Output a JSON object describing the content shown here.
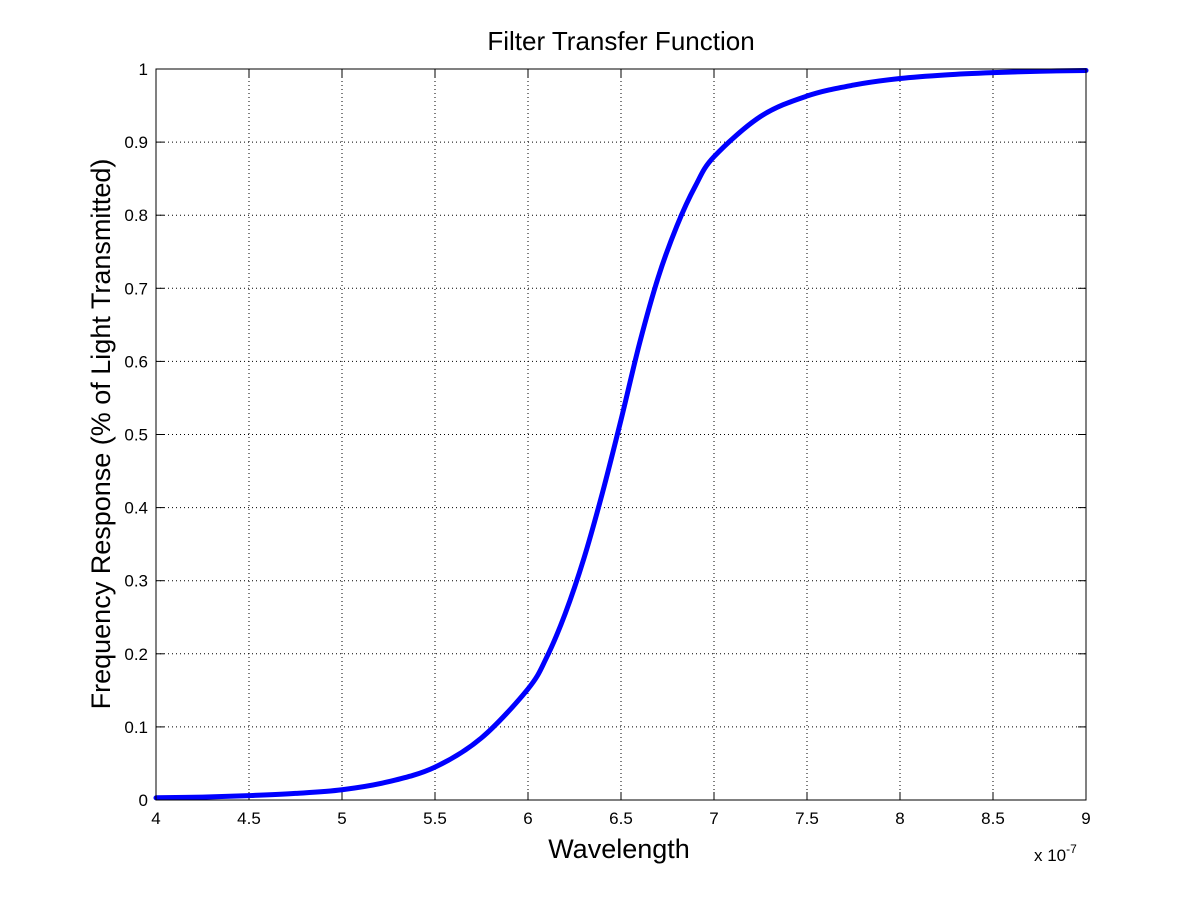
{
  "chart_data": {
    "type": "line",
    "title": "Filter Transfer Function",
    "xlabel": "Wavelength",
    "ylabel": "Frequency Response (% of Light Transmitted)",
    "x_multiplier": {
      "base": "x 10",
      "exponent": "-7"
    },
    "xlim": [
      4,
      9
    ],
    "ylim": [
      0,
      1
    ],
    "xticks": [
      "4",
      "4.5",
      "5",
      "5.5",
      "6",
      "6.5",
      "7",
      "7.5",
      "8",
      "8.5",
      "9"
    ],
    "yticks": [
      "0",
      "0.1",
      "0.2",
      "0.3",
      "0.4",
      "0.5",
      "0.6",
      "0.7",
      "0.8",
      "0.9",
      "1"
    ],
    "grid": true,
    "series": [
      {
        "color": "#0000ff",
        "x": [
          4.0,
          4.25,
          4.5,
          4.75,
          5.0,
          5.25,
          5.5,
          5.75,
          6.0,
          6.1,
          6.2,
          6.3,
          6.4,
          6.5,
          6.6,
          6.7,
          6.8,
          6.9,
          7.0,
          7.25,
          7.5,
          7.75,
          8.0,
          8.25,
          8.5,
          8.75,
          9.0
        ],
        "y": [
          0.003,
          0.004,
          0.006,
          0.009,
          0.014,
          0.025,
          0.045,
          0.085,
          0.152,
          0.195,
          0.255,
          0.33,
          0.42,
          0.52,
          0.625,
          0.715,
          0.785,
          0.84,
          0.88,
          0.935,
          0.963,
          0.978,
          0.987,
          0.992,
          0.995,
          0.997,
          0.998
        ]
      }
    ]
  }
}
